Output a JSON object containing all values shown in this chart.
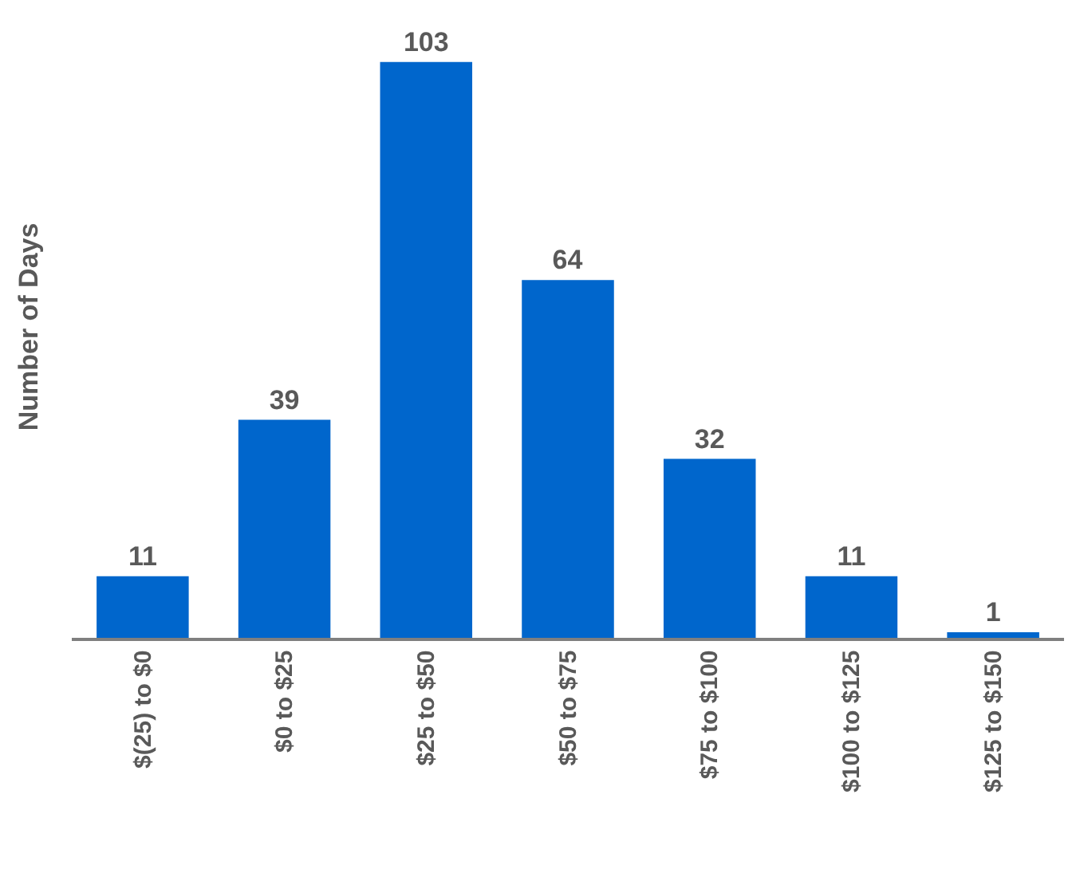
{
  "chart_data": {
    "type": "bar",
    "ylabel": "Number of Days",
    "categories": [
      "$(25) to $0",
      "$0 to $25",
      "$25 to $50",
      "$50 to $75",
      "$75 to $100",
      "$100 to $125",
      "$125 to $150"
    ],
    "values": [
      11,
      39,
      103,
      64,
      32,
      11,
      1
    ],
    "color": "#0066cc",
    "data_labels": true
  }
}
